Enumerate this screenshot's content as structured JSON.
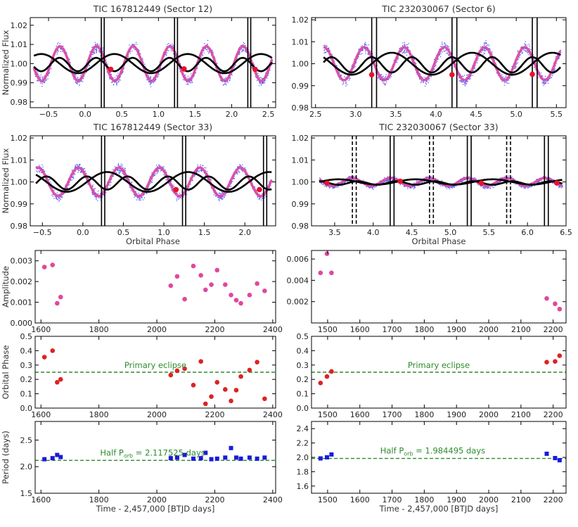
{
  "chart_data": [
    {
      "id": "lc1",
      "type": "scatter",
      "title": "TIC 167812449 (Sector 12)",
      "xlabel": "",
      "ylabel": "Normalized Flux",
      "xlim": [
        -0.75,
        2.6
      ],
      "ylim": [
        0.977,
        1.024
      ],
      "xticks": [
        -0.5,
        0.0,
        0.5,
        1.0,
        1.5,
        2.0,
        2.5
      ],
      "xticklabels": [
        "−0.5",
        "0.0",
        "0.5",
        "1.0",
        "1.5",
        "2.0",
        "2.5"
      ],
      "yticks": [
        0.98,
        0.99,
        1.0,
        1.01,
        1.02
      ],
      "yticklabels": [
        "0.98",
        "0.99",
        "1.00",
        "1.01",
        "1.02"
      ],
      "wave": {
        "x0": -0.7,
        "x1": 2.55,
        "period": 0.5,
        "phase": 0.03,
        "amp": 0.009,
        "noise": 0.0055
      },
      "model": {
        "amp": 0.005,
        "period": 1.0,
        "phase": 0.15,
        "period2": 0.5,
        "amp2": 0.0035
      },
      "eclipse_lines": [
        0.22,
        0.26,
        1.22,
        1.26,
        2.22,
        2.26
      ],
      "dashed_lines": [],
      "spot_points": [
        [
          0.35,
          0.997
        ],
        [
          1.35,
          0.9972
        ],
        [
          2.32,
          0.997
        ]
      ]
    },
    {
      "id": "lc2",
      "type": "scatter",
      "title": "TIC 232030067 (Sector 6)",
      "xlabel": "",
      "ylabel": "",
      "xlim": [
        2.45,
        5.62
      ],
      "ylim": [
        0.98,
        1.021
      ],
      "xticks": [
        2.5,
        3.0,
        3.5,
        4.0,
        4.5,
        5.0,
        5.5
      ],
      "xticklabels": [
        "2.5",
        "3.0",
        "3.5",
        "4.0",
        "4.5",
        "5.0",
        "5.5"
      ],
      "yticks": [
        0.98,
        0.99,
        1.0,
        1.01,
        1.02
      ],
      "yticklabels": [
        "0.98",
        "0.99",
        "1.00",
        "1.01",
        "1.02"
      ],
      "wave": {
        "x0": 2.6,
        "x1": 5.55,
        "period": 0.5,
        "phase": 0.48,
        "amp": 0.0075,
        "noise": 0.005
      },
      "model": {
        "amp": 0.005,
        "period": 1.0,
        "phase": 0.2,
        "period2": 0.5,
        "amp2": 0.0035
      },
      "eclipse_lines": [
        3.2,
        3.26,
        4.2,
        4.26,
        5.2,
        5.26
      ],
      "dashed_lines": [],
      "spot_points": [
        [
          3.2,
          0.995
        ],
        [
          4.2,
          0.995
        ],
        [
          5.2,
          0.9952
        ]
      ]
    },
    {
      "id": "lc3",
      "type": "scatter",
      "title": "TIC 167812449 (Sector 33)",
      "xlabel": "Orbital Phase",
      "ylabel": "Normalized Flux",
      "xlim": [
        -0.65,
        2.38
      ],
      "ylim": [
        0.98,
        1.021
      ],
      "xticks": [
        -0.5,
        0.0,
        0.5,
        1.0,
        1.5,
        2.0
      ],
      "xticklabels": [
        "−0.5",
        "0.0",
        "0.5",
        "1.0",
        "1.5",
        "2.0"
      ],
      "yticks": [
        0.98,
        0.99,
        1.0,
        1.01,
        1.02
      ],
      "yticklabels": [
        "0.98",
        "0.99",
        "1.00",
        "1.01",
        "1.02"
      ],
      "wave": {
        "x0": -0.58,
        "x1": 2.33,
        "period": 0.5,
        "phase": 0.32,
        "amp": 0.0065,
        "noise": 0.0045
      },
      "model": {
        "amp": 0.0045,
        "period": 1.0,
        "phase": 0.05,
        "period2": 0.5,
        "amp2": 0.003
      },
      "eclipse_lines": [
        0.23,
        0.27,
        1.23,
        1.27,
        2.23,
        2.27
      ],
      "dashed_lines": [],
      "spot_points": [
        [
          1.15,
          0.9965
        ],
        [
          2.18,
          0.9965
        ]
      ]
    },
    {
      "id": "lc4",
      "type": "scatter",
      "title": "TIC 232030067 (Sector 33)",
      "xlabel": "Orbital Phase",
      "ylabel": "",
      "xlim": [
        3.2,
        6.5
      ],
      "ylim": [
        0.98,
        1.021
      ],
      "xticks": [
        3.5,
        4.0,
        4.5,
        5.0,
        5.5,
        6.0,
        6.5
      ],
      "xticklabels": [
        "3.5",
        "4.0",
        "4.5",
        "5.0",
        "5.5",
        "6.0",
        "6.5"
      ],
      "yticks": [
        0.98,
        0.99,
        1.0,
        1.01,
        1.02
      ],
      "yticklabels": [
        "0.98",
        "0.99",
        "1.00",
        "1.01",
        "1.02"
      ],
      "wave": {
        "x0": 3.3,
        "x1": 6.45,
        "period": 0.5,
        "phase": 0.1,
        "amp": 0.0018,
        "noise": 0.0025
      },
      "model": {
        "amp": 0.0012,
        "period": 1.0,
        "phase": 0.3,
        "period2": 0.5,
        "amp2": 0.0008
      },
      "eclipse_lines": [
        4.22,
        4.27,
        5.22,
        5.27,
        6.22,
        6.27
      ],
      "dashed_lines": [
        3.73,
        3.78,
        4.73,
        4.78,
        5.73,
        5.78
      ],
      "spot_points": [
        [
          3.4,
          0.9995
        ],
        [
          4.35,
          1.0003
        ],
        [
          5.4,
          0.9995
        ],
        [
          6.38,
          0.9995
        ]
      ]
    },
    {
      "id": "amp1",
      "type": "scatter",
      "ylabel": "Amplitude",
      "xlabel": "",
      "xlim": [
        1580,
        2410
      ],
      "ylim": [
        0.0,
        0.0035
      ],
      "xticks": [
        1600,
        1800,
        2000,
        2200,
        2400
      ],
      "xticklabels": [
        "1600",
        "1800",
        "2000",
        "2200",
        "2400"
      ],
      "yticks": [
        0.0,
        0.001,
        0.002,
        0.003
      ],
      "yticklabels": [
        "0.000",
        "0.001",
        "0.002",
        "0.003"
      ],
      "color": "#e0479e",
      "x": [
        1612,
        1640,
        1656,
        1668,
        2048,
        2070,
        2096,
        2126,
        2152,
        2168,
        2188,
        2208,
        2236,
        2256,
        2274,
        2290,
        2320,
        2346,
        2372
      ],
      "y": [
        0.0027,
        0.0028,
        0.00095,
        0.00125,
        0.0018,
        0.00225,
        0.00115,
        0.00275,
        0.0023,
        0.0016,
        0.00185,
        0.00255,
        0.00185,
        0.00135,
        0.0011,
        0.00095,
        0.00135,
        0.0019,
        0.00155
      ]
    },
    {
      "id": "amp2",
      "type": "scatter",
      "ylabel": "",
      "xlabel": "",
      "xlim": [
        1450,
        2240
      ],
      "ylim": [
        0.0,
        0.0068
      ],
      "xticks": [
        1500,
        1600,
        1700,
        1800,
        1900,
        2000,
        2100,
        2200
      ],
      "xticklabels": [
        "1500",
        "1600",
        "1700",
        "1800",
        "1900",
        "2000",
        "2100",
        "2200"
      ],
      "yticks": [
        0.002,
        0.004,
        0.006
      ],
      "yticklabels": [
        "0.002",
        "0.004",
        "0.006"
      ],
      "color": "#e0479e",
      "x": [
        1478,
        1498,
        1512,
        2180,
        2206,
        2220
      ],
      "y": [
        0.0047,
        0.0065,
        0.0047,
        0.0023,
        0.0018,
        0.0013
      ]
    },
    {
      "id": "ph1",
      "type": "scatter",
      "ylabel": "Orbital Phase",
      "xlabel": "",
      "xlim": [
        1580,
        2410
      ],
      "ylim": [
        0.0,
        0.5
      ],
      "xticks": [
        1600,
        1800,
        2000,
        2200,
        2400
      ],
      "xticklabels": [
        "1600",
        "1800",
        "2000",
        "2200",
        "2400"
      ],
      "yticks": [
        0.0,
        0.1,
        0.2,
        0.3,
        0.4,
        0.5
      ],
      "yticklabels": [
        "0.0",
        "0.1",
        "0.2",
        "0.3",
        "0.4",
        "0.5"
      ],
      "color": "#dd2222",
      "x": [
        1612,
        1640,
        1656,
        1668,
        2048,
        2070,
        2096,
        2126,
        2152,
        2168,
        2188,
        2208,
        2236,
        2256,
        2274,
        2290,
        2320,
        2346,
        2372
      ],
      "y": [
        0.355,
        0.4,
        0.18,
        0.2,
        0.23,
        0.26,
        0.275,
        0.16,
        0.325,
        0.03,
        0.08,
        0.18,
        0.13,
        0.05,
        0.125,
        0.22,
        0.265,
        0.32,
        0.065
      ],
      "hline": 0.25,
      "annotation": "Primary eclipse"
    },
    {
      "id": "ph2",
      "type": "scatter",
      "ylabel": "",
      "xlabel": "",
      "xlim": [
        1450,
        2240
      ],
      "ylim": [
        0.0,
        0.5
      ],
      "xticks": [
        1500,
        1600,
        1700,
        1800,
        1900,
        2000,
        2100,
        2200
      ],
      "xticklabels": [
        "1500",
        "1600",
        "1700",
        "1800",
        "1900",
        "2000",
        "2100",
        "2200"
      ],
      "yticks": [
        0.0,
        0.1,
        0.2,
        0.3,
        0.4,
        0.5
      ],
      "yticklabels": [
        "0.0",
        "0.1",
        "0.2",
        "0.3",
        "0.4",
        "0.5"
      ],
      "color": "#dd2222",
      "x": [
        1478,
        1498,
        1512,
        2180,
        2206,
        2220
      ],
      "y": [
        0.175,
        0.22,
        0.255,
        0.32,
        0.325,
        0.365
      ],
      "hline": 0.25,
      "annotation": "Primary eclipse"
    },
    {
      "id": "per1",
      "type": "scatter",
      "ylabel": "Period (days)",
      "xlabel": "Time - 2,457,000 [BTJD days]",
      "xlim": [
        1580,
        2410
      ],
      "ylim": [
        1.5,
        2.85
      ],
      "xticks": [
        1600,
        1800,
        2000,
        2200,
        2400
      ],
      "xticklabels": [
        "1600",
        "1800",
        "2000",
        "2200",
        "2400"
      ],
      "yticks": [
        1.5,
        2.0,
        2.5
      ],
      "yticklabels": [
        "1.5",
        "2.0",
        "2.5"
      ],
      "color": "#1a1adb",
      "x": [
        1612,
        1640,
        1656,
        1668,
        2048,
        2070,
        2096,
        2126,
        2152,
        2168,
        2188,
        2208,
        2236,
        2256,
        2274,
        2290,
        2320,
        2346,
        2372
      ],
      "y": [
        2.14,
        2.16,
        2.22,
        2.18,
        2.16,
        2.17,
        2.22,
        2.15,
        2.16,
        2.26,
        2.14,
        2.15,
        2.17,
        2.35,
        2.17,
        2.15,
        2.17,
        2.15,
        2.17
      ],
      "hline": 2.117525,
      "annotation_main": "Half P",
      "annotation_sub": "orb",
      "annotation_tail": " = 2.117525 days"
    },
    {
      "id": "per2",
      "type": "scatter",
      "ylabel": "",
      "xlabel": "Time - 2,457,000 [BTJD days]",
      "xlim": [
        1450,
        2240
      ],
      "ylim": [
        1.5,
        2.5
      ],
      "xticks": [
        1500,
        1600,
        1700,
        1800,
        1900,
        2000,
        2100,
        2200
      ],
      "xticklabels": [
        "1500",
        "1600",
        "1700",
        "1800",
        "1900",
        "2000",
        "2100",
        "2200"
      ],
      "yticks": [
        1.6,
        1.8,
        2.0,
        2.2,
        2.4
      ],
      "yticklabels": [
        "1.6",
        "1.8",
        "2.0",
        "2.2",
        "2.4"
      ],
      "color": "#1a1adb",
      "x": [
        1478,
        1498,
        1512,
        2180,
        2206,
        2220
      ],
      "y": [
        1.985,
        2.0,
        2.04,
        2.05,
        1.99,
        1.96
      ],
      "hline": 1.984495,
      "annotation_main": "Half P",
      "annotation_sub": "orb",
      "annotation_tail": " = 1.984495 days"
    }
  ]
}
